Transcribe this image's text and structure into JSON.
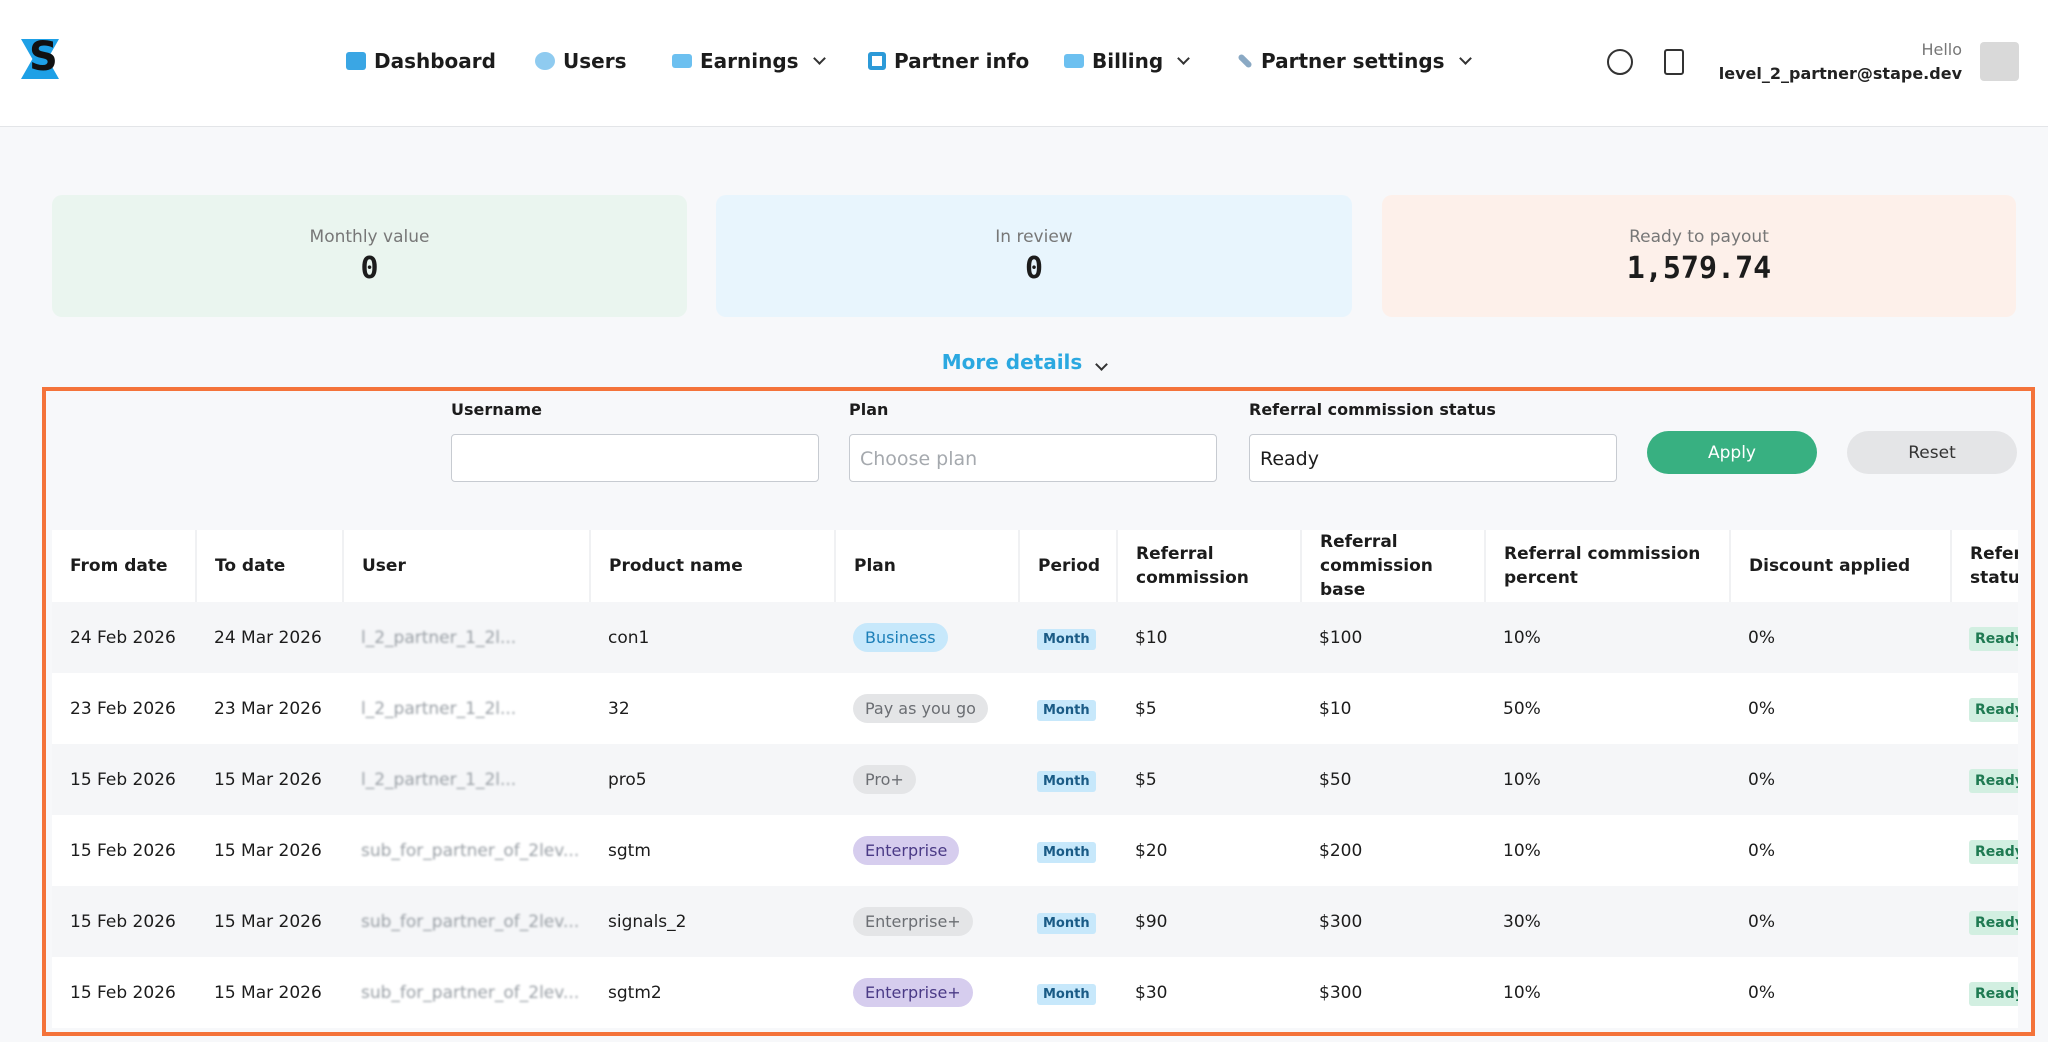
{
  "header": {
    "nav": [
      "Dashboard",
      "Users",
      "Earnings",
      "Partner info",
      "Billing",
      "Partner settings"
    ],
    "greeting": "Hello",
    "email": "level_2_partner@stape.dev"
  },
  "cards": [
    {
      "label": "Monthly value",
      "value": "0"
    },
    {
      "label": "In review",
      "value": "0"
    },
    {
      "label": "Ready to payout",
      "value": "1,579.74"
    }
  ],
  "more_details": "More details",
  "filters": {
    "username_label": "Username",
    "plan_label": "Plan",
    "plan_placeholder": "Choose plan",
    "status_label": "Referral commission status",
    "status_value": "Ready",
    "apply": "Apply",
    "reset": "Reset"
  },
  "table": {
    "columns": [
      "From date",
      "To date",
      "User",
      "Product name",
      "Plan",
      "Period",
      "Referral commission",
      "Referral commission base",
      "Referral commission percent",
      "Discount applied",
      "Referral commission status"
    ],
    "plan_tones": [
      "blue",
      "gray",
      "gray",
      "purple",
      "gray",
      "purple"
    ],
    "rows": [
      [
        "24 Feb 2026",
        "24 Mar 2026",
        "l_2_partner_1_2l...",
        "con1",
        "Business",
        "Month",
        "$10",
        "$100",
        "10%",
        "0%",
        "Ready"
      ],
      [
        "23 Feb 2026",
        "23 Mar 2026",
        "l_2_partner_1_2l...",
        "32",
        "Pay as you go",
        "Month",
        "$5",
        "$10",
        "50%",
        "0%",
        "Ready"
      ],
      [
        "15 Feb 2026",
        "15 Mar 2026",
        "l_2_partner_1_2l...",
        "pro5",
        "Pro+",
        "Month",
        "$5",
        "$50",
        "10%",
        "0%",
        "Ready"
      ],
      [
        "15 Feb 2026",
        "15 Mar 2026",
        "sub_for_partner_of_2lev...",
        "sgtm",
        "Enterprise",
        "Month",
        "$20",
        "$200",
        "10%",
        "0%",
        "Ready"
      ],
      [
        "15 Feb 2026",
        "15 Mar 2026",
        "sub_for_partner_of_2lev...",
        "signals_2",
        "Enterprise+",
        "Month",
        "$90",
        "$300",
        "30%",
        "0%",
        "Ready"
      ],
      [
        "15 Feb 2026",
        "15 Mar 2026",
        "sub_for_partner_of_2lev...",
        "sgtm2",
        "Enterprise+",
        "Month",
        "$30",
        "$300",
        "10%",
        "0%",
        "Ready"
      ]
    ]
  }
}
